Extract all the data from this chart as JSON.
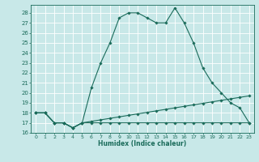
{
  "xlabel": "Humidex (Indice chaleur)",
  "bg_color": "#c8e8e8",
  "grid_color": "#ffffff",
  "line_color": "#1a6b5a",
  "xlim": [
    -0.5,
    23.5
  ],
  "ylim": [
    16,
    28.8
  ],
  "yticks": [
    16,
    17,
    18,
    19,
    20,
    21,
    22,
    23,
    24,
    25,
    26,
    27,
    28
  ],
  "xticks": [
    0,
    1,
    2,
    3,
    4,
    5,
    6,
    7,
    8,
    9,
    10,
    11,
    12,
    13,
    14,
    15,
    16,
    17,
    18,
    19,
    20,
    21,
    22,
    23
  ],
  "line1_x": [
    0,
    1,
    2,
    3,
    4,
    5,
    6,
    7,
    8,
    9,
    10,
    11,
    12,
    13,
    14,
    15,
    16,
    17,
    18,
    19,
    20,
    21,
    22,
    23
  ],
  "line1_y": [
    18,
    18,
    17,
    17,
    16.5,
    17,
    20.5,
    23,
    25,
    27.5,
    28,
    28,
    27.5,
    27,
    27,
    28.5,
    27,
    25,
    22.5,
    21,
    20,
    19,
    18.5,
    17
  ],
  "line2_x": [
    0,
    1,
    2,
    3,
    4,
    5,
    6,
    7,
    8,
    9,
    10,
    11,
    12,
    13,
    14,
    15,
    16,
    17,
    18,
    19,
    20,
    21,
    22,
    23
  ],
  "line2_y": [
    18,
    18,
    17,
    17,
    16.5,
    17,
    17,
    17,
    17,
    17,
    17,
    17,
    17,
    17,
    17,
    17,
    17,
    17,
    17,
    17,
    17,
    17,
    17,
    17
  ],
  "line3_x": [
    0,
    1,
    2,
    3,
    4,
    5,
    6,
    7,
    8,
    9,
    10,
    11,
    12,
    13,
    14,
    15,
    16,
    17,
    18,
    19,
    20,
    21,
    22,
    23
  ],
  "line3_y": [
    18,
    18,
    17,
    17,
    16.5,
    17,
    17.15,
    17.3,
    17.45,
    17.6,
    17.75,
    17.9,
    18.05,
    18.2,
    18.35,
    18.5,
    18.65,
    18.8,
    18.95,
    19.1,
    19.25,
    19.4,
    19.55,
    19.7
  ],
  "figsize": [
    3.2,
    2.0
  ],
  "dpi": 100
}
